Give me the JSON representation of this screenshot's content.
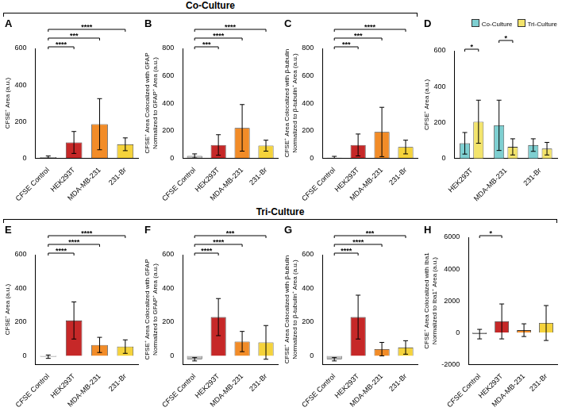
{
  "section_titles": [
    "Co-Culture",
    "Tri-Culture"
  ],
  "chart_data": [
    {
      "panel": "A",
      "type": "bar",
      "y_label": "CFSE⁺ Area (a.u.)",
      "categories": [
        "CFSE Control",
        "HEK293T",
        "MDA-MB-231",
        "231-Br"
      ],
      "values": [
        5,
        85,
        185,
        75
      ],
      "errors": [
        6,
        60,
        140,
        35
      ],
      "colors": [
        "#bdbdbd",
        "#c62828",
        "#f28c28",
        "#f5d33b"
      ],
      "ylim": [
        0,
        600
      ],
      "yticks": [
        0,
        200,
        400,
        600
      ],
      "grid": false,
      "brackets": [
        {
          "from": "CFSE Control",
          "to": "HEK293T",
          "label": "****"
        },
        {
          "from": "CFSE Control",
          "to": "MDA-MB-231",
          "label": "***"
        },
        {
          "from": "CFSE Control",
          "to": "231-Br",
          "label": "****"
        }
      ]
    },
    {
      "panel": "B",
      "type": "bar",
      "y_label": [
        "CFSE⁺ Area Colocalized with GFAP",
        "Normalized to GFAP⁺ Area (a.u.)"
      ],
      "categories": [
        "CFSE Control",
        "HEK293T",
        "MDA-MB-231",
        "231-Br"
      ],
      "values": [
        15,
        95,
        220,
        90
      ],
      "errors": [
        15,
        75,
        170,
        40
      ],
      "colors": [
        "#bdbdbd",
        "#c62828",
        "#f28c28",
        "#f5d33b"
      ],
      "ylim": [
        0,
        800
      ],
      "yticks": [
        0,
        200,
        400,
        600,
        800
      ],
      "grid": false,
      "brackets": [
        {
          "from": "CFSE Control",
          "to": "HEK293T",
          "label": "***"
        },
        {
          "from": "CFSE Control",
          "to": "MDA-MB-231",
          "label": "****"
        },
        {
          "from": "CFSE Control",
          "to": "231-Br",
          "label": "****"
        }
      ]
    },
    {
      "panel": "C",
      "type": "bar",
      "y_label": [
        "CFSE⁺ Area Colocalized with β-tubulin",
        "Normalized to β-tubulin⁺ Area (a.u.)"
      ],
      "categories": [
        "CFSE Control",
        "HEK293T",
        "MDA-MB-231",
        "231-Br"
      ],
      "values": [
        2,
        95,
        190,
        80
      ],
      "errors": [
        10,
        80,
        180,
        50
      ],
      "colors": [
        "#bdbdbd",
        "#c62828",
        "#f28c28",
        "#f5d33b"
      ],
      "ylim": [
        0,
        800
      ],
      "yticks": [
        0,
        200,
        400,
        600,
        800
      ],
      "grid": false,
      "brackets": [
        {
          "from": "CFSE Control",
          "to": "HEK293T",
          "label": "***"
        },
        {
          "from": "CFSE Control",
          "to": "MDA-MB-231",
          "label": "***"
        },
        {
          "from": "CFSE Control",
          "to": "231-Br",
          "label": "****"
        }
      ]
    },
    {
      "panel": "D",
      "type": "bar",
      "y_label": "CFSE⁺ Area (a.u.)",
      "categories": [
        "HEK293T",
        "MDA-MB-231",
        "231-Br"
      ],
      "series": [
        {
          "name": "Co-Culture",
          "color": "#7ecfd1",
          "values": [
            85,
            185,
            75
          ],
          "errors": [
            60,
            140,
            35
          ]
        },
        {
          "name": "Tri-Culture",
          "color": "#f3e46c",
          "values": [
            205,
            65,
            55
          ],
          "errors": [
            120,
            45,
            35
          ]
        }
      ],
      "ylim": [
        0,
        600
      ],
      "yticks": [
        0,
        200,
        400,
        600
      ],
      "grid": false,
      "legend": "upper right",
      "brackets": [
        {
          "category": "HEK293T",
          "label": "*"
        },
        {
          "category": "MDA-MB-231",
          "label": "*"
        }
      ]
    },
    {
      "panel": "E",
      "type": "bar",
      "y_label": "CFSE⁺ Area (a.u.)",
      "categories": [
        "CFSE Control",
        "HEK293T",
        "MDA-MB-231",
        "231-Br"
      ],
      "values": [
        -5,
        210,
        65,
        55
      ],
      "errors": [
        10,
        110,
        45,
        40
      ],
      "colors": [
        "#bdbdbd",
        "#c62828",
        "#f28c28",
        "#f5d33b"
      ],
      "ylim": [
        -50,
        600
      ],
      "yticks": [
        0,
        200,
        400,
        600
      ],
      "grid": false,
      "brackets": [
        {
          "from": "CFSE Control",
          "to": "HEK293T",
          "label": "****"
        },
        {
          "from": "CFSE Control",
          "to": "MDA-MB-231",
          "label": "****"
        },
        {
          "from": "CFSE Control",
          "to": "231-Br",
          "label": "****"
        }
      ]
    },
    {
      "panel": "F",
      "type": "bar",
      "y_label": [
        "CFSE⁺ Area Colocalized with GFAP",
        "Normalized to GFAP⁺ Area (a.u.)"
      ],
      "categories": [
        "CFSE Control",
        "HEK293T",
        "MDA-MB-231",
        "231-Br"
      ],
      "values": [
        -20,
        230,
        85,
        80
      ],
      "errors": [
        10,
        110,
        60,
        100
      ],
      "colors": [
        "#bdbdbd",
        "#c62828",
        "#f28c28",
        "#f5d33b"
      ],
      "ylim": [
        -50,
        600
      ],
      "yticks": [
        0,
        200,
        400,
        600
      ],
      "grid": false,
      "brackets": [
        {
          "from": "CFSE Control",
          "to": "HEK293T",
          "label": "****"
        },
        {
          "from": "CFSE Control",
          "to": "MDA-MB-231",
          "label": "****"
        },
        {
          "from": "CFSE Control",
          "to": "231-Br",
          "label": "***"
        }
      ]
    },
    {
      "panel": "G",
      "type": "bar",
      "y_label": [
        "CFSE⁺ Area Colocalized with β-tubulin",
        "Normalized to β-tubulin⁺ Area (a.u.)"
      ],
      "categories": [
        "CFSE Control",
        "HEK293T",
        "MDA-MB-231",
        "231-Br"
      ],
      "values": [
        -20,
        230,
        40,
        50
      ],
      "errors": [
        10,
        130,
        40,
        40
      ],
      "colors": [
        "#bdbdbd",
        "#c62828",
        "#f28c28",
        "#f5d33b"
      ],
      "ylim": [
        -50,
        600
      ],
      "yticks": [
        0,
        200,
        400,
        600
      ],
      "grid": false,
      "brackets": [
        {
          "from": "CFSE Control",
          "to": "HEK293T",
          "label": "****"
        },
        {
          "from": "CFSE Control",
          "to": "MDA-MB-231",
          "label": "****"
        },
        {
          "from": "CFSE Control",
          "to": "231-Br",
          "label": "***"
        }
      ]
    },
    {
      "panel": "H",
      "type": "bar",
      "y_label": [
        "CFSE⁺ Area Colocalized with Iba1",
        "Normalized to Iba1⁺ Area (a.u.)"
      ],
      "categories": [
        "CFSE Control",
        "HEK293T",
        "MDA-MB-231",
        "231-Br"
      ],
      "values": [
        -100,
        700,
        150,
        600
      ],
      "errors": [
        300,
        1100,
        400,
        1100
      ],
      "colors": [
        "#bdbdbd",
        "#c62828",
        "#f28c28",
        "#f5d33b"
      ],
      "ylim": [
        -2000,
        6000
      ],
      "yticks": [
        -2000,
        0,
        2000,
        4000,
        6000
      ],
      "grid": false,
      "brackets": [
        {
          "from": "CFSE Control",
          "to": "HEK293T",
          "label": "*"
        }
      ]
    }
  ]
}
